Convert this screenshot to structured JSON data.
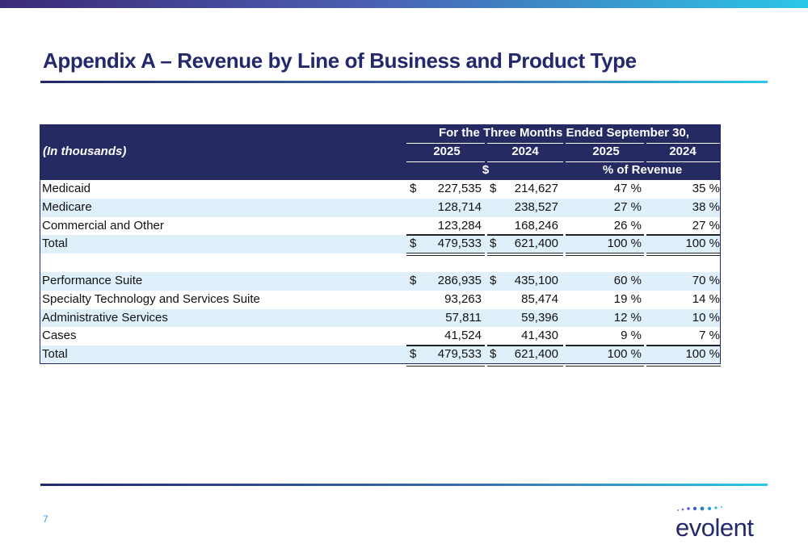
{
  "header": {
    "title": "Appendix A – Revenue by Line of Business and Product Type"
  },
  "table": {
    "period": "For the Three Months Ended September 30,",
    "units": "(In thousands)",
    "years": [
      "2025",
      "2024",
      "2025",
      "2024"
    ],
    "dollar_header": "$",
    "percent_header": "% of Revenue",
    "sections": [
      [
        {
          "label": "Medicaid",
          "dollar_2025": "$",
          "v2025": "227,535",
          "dollar_2024": "$",
          "v2024": "214,627",
          "p2025": "47 %",
          "p2024": "35 %"
        },
        {
          "label": "Medicare",
          "v2025": "128,714",
          "v2024": "238,527",
          "p2025": "27 %",
          "p2024": "38 %"
        },
        {
          "label": "Commercial and Other",
          "v2025": "123,284",
          "v2024": "168,246",
          "p2025": "26 %",
          "p2024": "27 %"
        },
        {
          "label": "Total",
          "dollar_2025": "$",
          "v2025": "479,533",
          "dollar_2024": "$",
          "v2024": "621,400",
          "p2025": "100 %",
          "p2024": "100 %"
        }
      ],
      [
        {
          "label": "Performance Suite",
          "dollar_2025": "$",
          "v2025": "286,935",
          "dollar_2024": "$",
          "v2024": "435,100",
          "p2025": "60 %",
          "p2024": "70 %"
        },
        {
          "label": "Specialty Technology and Services Suite",
          "v2025": "93,263",
          "v2024": "85,474",
          "p2025": "19 %",
          "p2024": "14 %"
        },
        {
          "label": "Administrative Services",
          "v2025": "57,811",
          "v2024": "59,396",
          "p2025": "12 %",
          "p2024": "10 %"
        },
        {
          "label": "Cases",
          "v2025": "41,524",
          "v2024": "41,430",
          "p2025": "9 %",
          "p2024": "7 %"
        },
        {
          "label": "Total",
          "dollar_2025": "$",
          "v2025": "479,533",
          "dollar_2024": "$",
          "v2024": "621,400",
          "p2025": "100 %",
          "p2024": "100 %"
        }
      ]
    ]
  },
  "footer": {
    "page": "7",
    "logo": "evolent"
  }
}
